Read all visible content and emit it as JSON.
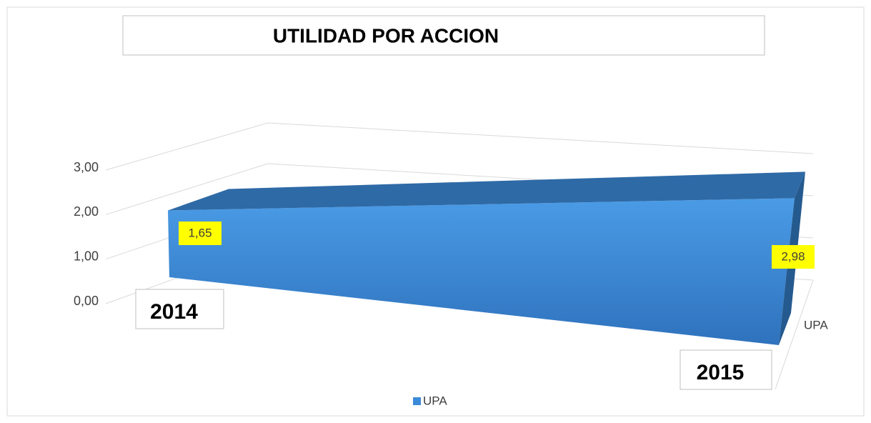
{
  "chart_data": {
    "type": "area3d",
    "title": "UTILIDAD POR ACCION",
    "categories": [
      "2014",
      "2015"
    ],
    "series": [
      {
        "name": "UPA",
        "color": "#3d8ad8",
        "values": [
          1.65,
          2.98
        ],
        "value_labels": [
          "1,65",
          "2,98"
        ]
      }
    ],
    "depth_label": "UPA",
    "ylim": [
      0,
      3
    ],
    "yticks": [
      {
        "value": 0,
        "label": "0,00"
      },
      {
        "value": 1,
        "label": "1,00"
      },
      {
        "value": 2,
        "label": "2,00"
      },
      {
        "value": 3,
        "label": "3,00"
      }
    ],
    "grid": true,
    "legend": "bottom"
  }
}
